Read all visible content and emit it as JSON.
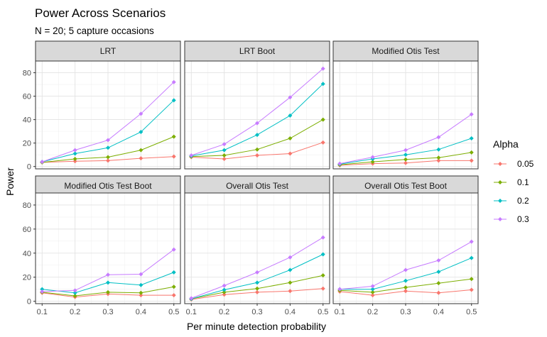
{
  "chart_data": {
    "type": "line",
    "title": "Power Across Scenarios",
    "subtitle": "N = 20; 5 capture occasions",
    "xlabel": "Per minute detection probability",
    "ylabel": "Power",
    "x": [
      0.1,
      0.2,
      0.3,
      0.4,
      0.5
    ],
    "x_tick_labels": [
      "0.1",
      "0.2",
      "0.3",
      "0.4",
      "0.5"
    ],
    "ylim": [
      -2,
      90
    ],
    "y_ticks": [
      0,
      20,
      40,
      60,
      80
    ],
    "y_tick_labels": [
      "0",
      "20",
      "40",
      "60",
      "80"
    ],
    "grid": true,
    "legend": {
      "title": "Alpha",
      "position": "right",
      "entries": [
        {
          "label": "0.05",
          "color": "#F8766D"
        },
        {
          "label": "0.1",
          "color": "#7CAE00"
        },
        {
          "label": "0.2",
          "color": "#00BFC4"
        },
        {
          "label": "0.3",
          "color": "#C77CFF"
        }
      ]
    },
    "panels": [
      {
        "strip": "LRT",
        "series": [
          {
            "name": "0.05",
            "values": [
              3.5,
              4.5,
              5,
              7,
              8.5
            ]
          },
          {
            "name": "0.1",
            "values": [
              3.5,
              6.5,
              8,
              14,
              25.5
            ]
          },
          {
            "name": "0.2",
            "values": [
              4,
              11,
              16,
              29.5,
              56.5
            ]
          },
          {
            "name": "0.3",
            "values": [
              4,
              14,
              22.5,
              45,
              72
            ]
          }
        ]
      },
      {
        "strip": "LRT Boot",
        "series": [
          {
            "name": "0.05",
            "values": [
              8,
              6.5,
              9.5,
              11,
              20.5
            ]
          },
          {
            "name": "0.1",
            "values": [
              8.5,
              9.5,
              14.5,
              24,
              40
            ]
          },
          {
            "name": "0.2",
            "values": [
              9,
              14,
              27,
              43.5,
              70.5
            ]
          },
          {
            "name": "0.3",
            "values": [
              9.5,
              19,
              37,
              59,
              83.5
            ]
          }
        ]
      },
      {
        "strip": "Modified Otis Test",
        "series": [
          {
            "name": "0.05",
            "values": [
              1,
              2.5,
              3,
              5,
              5
            ]
          },
          {
            "name": "0.1",
            "values": [
              1.5,
              4,
              6,
              7.5,
              12
            ]
          },
          {
            "name": "0.2",
            "values": [
              2,
              6.5,
              10,
              14.5,
              24
            ]
          },
          {
            "name": "0.3",
            "values": [
              2.5,
              8,
              14,
              25,
              44.5
            ]
          }
        ]
      },
      {
        "strip": "Modified Otis Test Boot",
        "series": [
          {
            "name": "0.05",
            "values": [
              7,
              3.5,
              6,
              5,
              5
            ]
          },
          {
            "name": "0.1",
            "values": [
              7.5,
              4.5,
              7.5,
              7,
              12
            ]
          },
          {
            "name": "0.2",
            "values": [
              10,
              7,
              15.5,
              13.5,
              24
            ]
          },
          {
            "name": "0.3",
            "values": [
              8,
              9,
              22,
              22.5,
              43
            ]
          }
        ]
      },
      {
        "strip": "Overall Otis Test",
        "series": [
          {
            "name": "0.05",
            "values": [
              1.5,
              5.5,
              7.5,
              8.5,
              10.5
            ]
          },
          {
            "name": "0.1",
            "values": [
              2,
              7.5,
              10.5,
              15.5,
              21.5
            ]
          },
          {
            "name": "0.2",
            "values": [
              2,
              9.5,
              15.5,
              26,
              39
            ]
          },
          {
            "name": "0.3",
            "values": [
              2.5,
              13,
              24,
              36.5,
              53
            ]
          }
        ]
      },
      {
        "strip": "Overall Otis Test Boot",
        "series": [
          {
            "name": "0.05",
            "values": [
              8,
              5,
              8.5,
              7,
              9.5
            ]
          },
          {
            "name": "0.1",
            "values": [
              9,
              7.5,
              11.5,
              15,
              18.5
            ]
          },
          {
            "name": "0.2",
            "values": [
              10,
              10,
              17,
              24.5,
              36
            ]
          },
          {
            "name": "0.3",
            "values": [
              10,
              12.5,
              26,
              34,
              49.5
            ]
          }
        ]
      }
    ]
  }
}
